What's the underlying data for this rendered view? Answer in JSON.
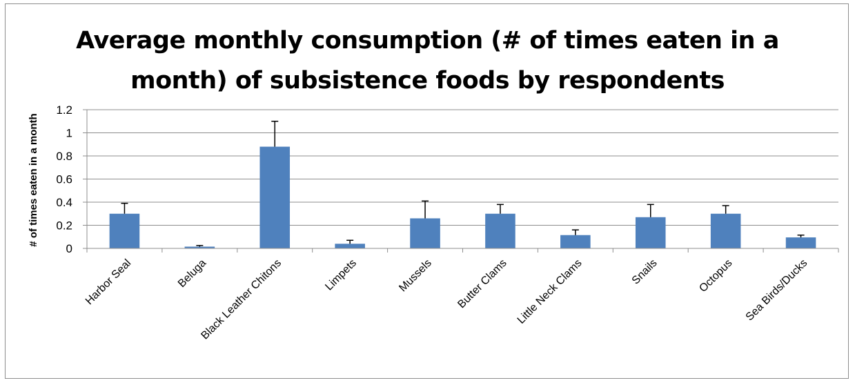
{
  "chart_data": {
    "type": "bar",
    "title_lines": [
      "Average monthly consumption (# of times eaten in a",
      "month) of subsistence foods by respondents"
    ],
    "xlabel": "",
    "ylabel": "# of times eaten in a month",
    "ylim": [
      0,
      1.2
    ],
    "yticks": [
      "0",
      "0.2",
      "0.4",
      "0.6",
      "0.8",
      "1",
      "1.2"
    ],
    "grid": true,
    "bar_color": "#4f81bd",
    "categories": [
      "Harbor Seal",
      "Beluga",
      "Black Leather Chitons",
      "Limpets",
      "Mussels",
      "Butter Clams",
      "Little Neck Clams",
      "Snails",
      "Octopus",
      "Sea Birds/Ducks"
    ],
    "values": [
      0.3,
      0.015,
      0.88,
      0.04,
      0.26,
      0.3,
      0.115,
      0.27,
      0.3,
      0.095
    ],
    "error_upper": [
      0.39,
      0.025,
      1.1,
      0.07,
      0.41,
      0.38,
      0.16,
      0.38,
      0.37,
      0.115
    ]
  }
}
